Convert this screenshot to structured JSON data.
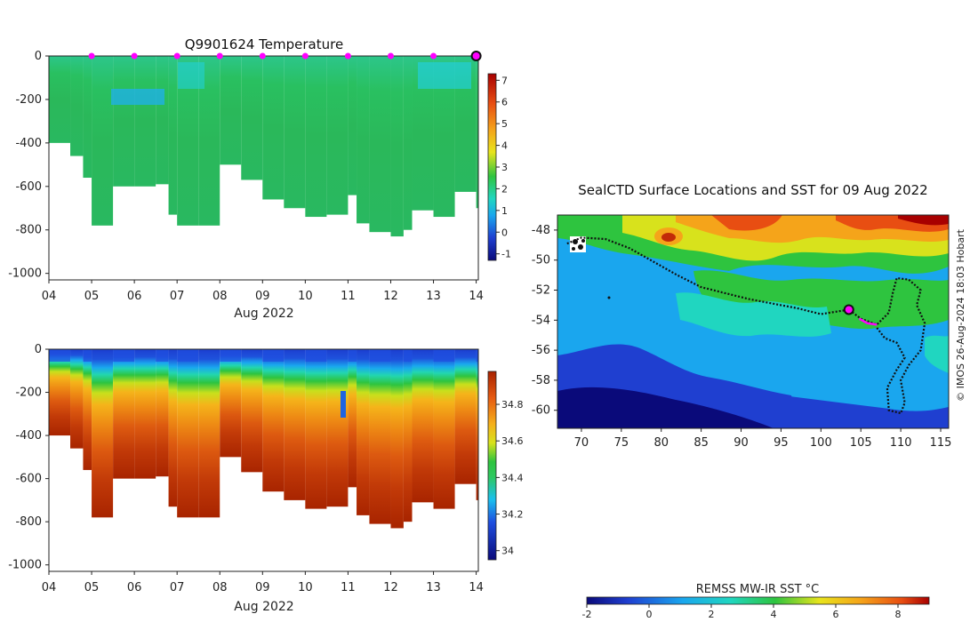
{
  "chart_data": [
    {
      "type": "heatmap",
      "name": "temperature-section",
      "title": "Q9901624  Temperature",
      "xlabel": "Aug 2022",
      "ylabel": "",
      "x_ticks": [
        "04",
        "05",
        "06",
        "07",
        "08",
        "09",
        "10",
        "11",
        "12",
        "13",
        "14"
      ],
      "x_range": [
        4,
        14.05
      ],
      "y_ticks": [
        0,
        -200,
        -400,
        -600,
        -800,
        -1000
      ],
      "y_range": [
        -1030,
        0
      ],
      "profile_days": [
        4.0,
        4.5,
        4.8,
        5.0,
        5.5,
        6.0,
        6.5,
        6.8,
        7.0,
        7.5,
        8.0,
        8.5,
        9.0,
        9.5,
        10.0,
        10.5,
        11.0,
        11.2,
        11.5,
        12.0,
        12.3,
        12.5,
        13.0,
        13.5,
        14.0
      ],
      "profile_max_depth": [
        -400,
        -460,
        -560,
        -780,
        -600,
        -600,
        -590,
        -730,
        -780,
        -780,
        -500,
        -570,
        -660,
        -700,
        -740,
        -730,
        -640,
        -770,
        -810,
        -830,
        -800,
        -710,
        -740,
        -625,
        -700
      ],
      "surface_markers_days": [
        5,
        6,
        7,
        8,
        9,
        10,
        11,
        12,
        13
      ],
      "latest_profile_day": 14,
      "colorbar": {
        "min": -1.3,
        "max": 7.3,
        "ticks": [
          -1,
          0,
          1,
          2,
          3,
          4,
          5,
          6,
          7
        ]
      }
    },
    {
      "type": "heatmap",
      "name": "salinity-section",
      "title": "",
      "xlabel": "Aug 2022",
      "x_ticks": [
        "04",
        "05",
        "06",
        "07",
        "08",
        "09",
        "10",
        "11",
        "12",
        "13",
        "14"
      ],
      "x_range": [
        4,
        14.05
      ],
      "y_ticks": [
        0,
        -200,
        -400,
        -600,
        -800,
        -1000
      ],
      "y_range": [
        -1030,
        0
      ],
      "colorbar": {
        "min": 33.95,
        "max": 34.98,
        "ticks": [
          34,
          34.2,
          34.4,
          34.6,
          34.8
        ]
      }
    },
    {
      "type": "heatmap",
      "name": "sst-map",
      "title": "SealCTD Surface Locations and SST for 09 Aug 2022",
      "x_ticks": [
        70,
        75,
        80,
        85,
        90,
        95,
        100,
        105,
        110,
        115
      ],
      "x_range": [
        67,
        116
      ],
      "y_ticks": [
        -48,
        -50,
        -52,
        -54,
        -56,
        -58,
        -60
      ],
      "y_range": [
        -61.2,
        -47
      ],
      "track_lonlat": [
        [
          68.2,
          -48.9
        ],
        [
          70,
          -48.5
        ],
        [
          73,
          -48.6
        ],
        [
          76,
          -49.2
        ],
        [
          79,
          -50.1
        ],
        [
          82,
          -51.0
        ],
        [
          85,
          -51.8
        ],
        [
          88,
          -52.2
        ],
        [
          91,
          -52.6
        ],
        [
          94,
          -52.9
        ],
        [
          97,
          -53.2
        ],
        [
          100,
          -53.6
        ],
        [
          103.5,
          -53.3
        ],
        [
          105,
          -53.9
        ],
        [
          107,
          -54.3
        ],
        [
          108.5,
          -53.5
        ],
        [
          109,
          -52.2
        ],
        [
          109.5,
          -51.2
        ],
        [
          111,
          -51.3
        ],
        [
          112.5,
          -52.0
        ],
        [
          112,
          -53.0
        ],
        [
          113,
          -54.2
        ],
        [
          112.5,
          -56.0
        ],
        [
          111,
          -57.0
        ],
        [
          110,
          -58.0
        ],
        [
          110.5,
          -59.5
        ],
        [
          110,
          -60.2
        ],
        [
          108.5,
          -60.0
        ],
        [
          108.3,
          -58.5
        ],
        [
          109.5,
          -57.3
        ],
        [
          110.5,
          -56.5
        ],
        [
          109.5,
          -55.5
        ],
        [
          108,
          -55.2
        ],
        [
          107,
          -54.5
        ]
      ],
      "recent_segment_lonlat": [
        [
          104.8,
          -53.9
        ],
        [
          105.8,
          -54.2
        ],
        [
          107.0,
          -54.3
        ]
      ],
      "current_position_lonlat": [
        103.5,
        -53.3
      ],
      "colorbar": {
        "label": "REMSS MW-IR SST °C",
        "min": -2,
        "max": 9,
        "ticks": [
          -2,
          0,
          2,
          4,
          6,
          8
        ]
      },
      "credit": "© IMOS 26-Aug-2024 18:03 Hobart"
    }
  ]
}
